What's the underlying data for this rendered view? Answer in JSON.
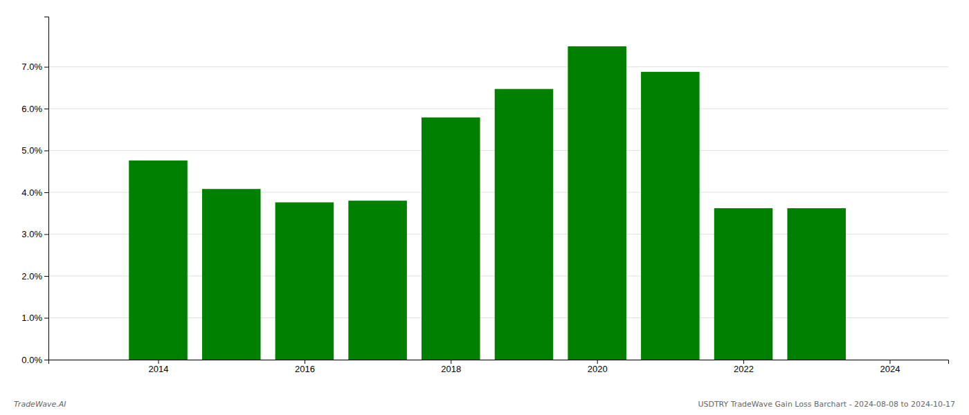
{
  "chart_data": {
    "type": "bar",
    "x": [
      2014,
      2015,
      2016,
      2017,
      2018,
      2019,
      2020,
      2021,
      2022,
      2023
    ],
    "values": [
      0.0476,
      0.0408,
      0.0376,
      0.038,
      0.0579,
      0.0647,
      0.0749,
      0.0688,
      0.0362,
      0.0362
    ],
    "color": "#008000",
    "xlim": [
      2012.5,
      2024.8
    ],
    "xticks": [
      2014,
      2016,
      2018,
      2020,
      2022,
      2024
    ],
    "ylim": [
      0.0,
      0.082
    ],
    "yticks": [
      {
        "value": 0.0,
        "label": "0.0%"
      },
      {
        "value": 0.01,
        "label": "1.0%"
      },
      {
        "value": 0.02,
        "label": "2.0%"
      },
      {
        "value": 0.03,
        "label": "3.0%"
      },
      {
        "value": 0.04,
        "label": "4.0%"
      },
      {
        "value": 0.05,
        "label": "5.0%"
      },
      {
        "value": 0.06,
        "label": "6.0%"
      },
      {
        "value": 0.07,
        "label": "7.0%"
      }
    ],
    "grid": true,
    "annotations": [
      "TradeWave.AI",
      "USDTRY TradeWave Gain Loss Barchart - 2024-08-08 to 2024-10-17"
    ]
  }
}
